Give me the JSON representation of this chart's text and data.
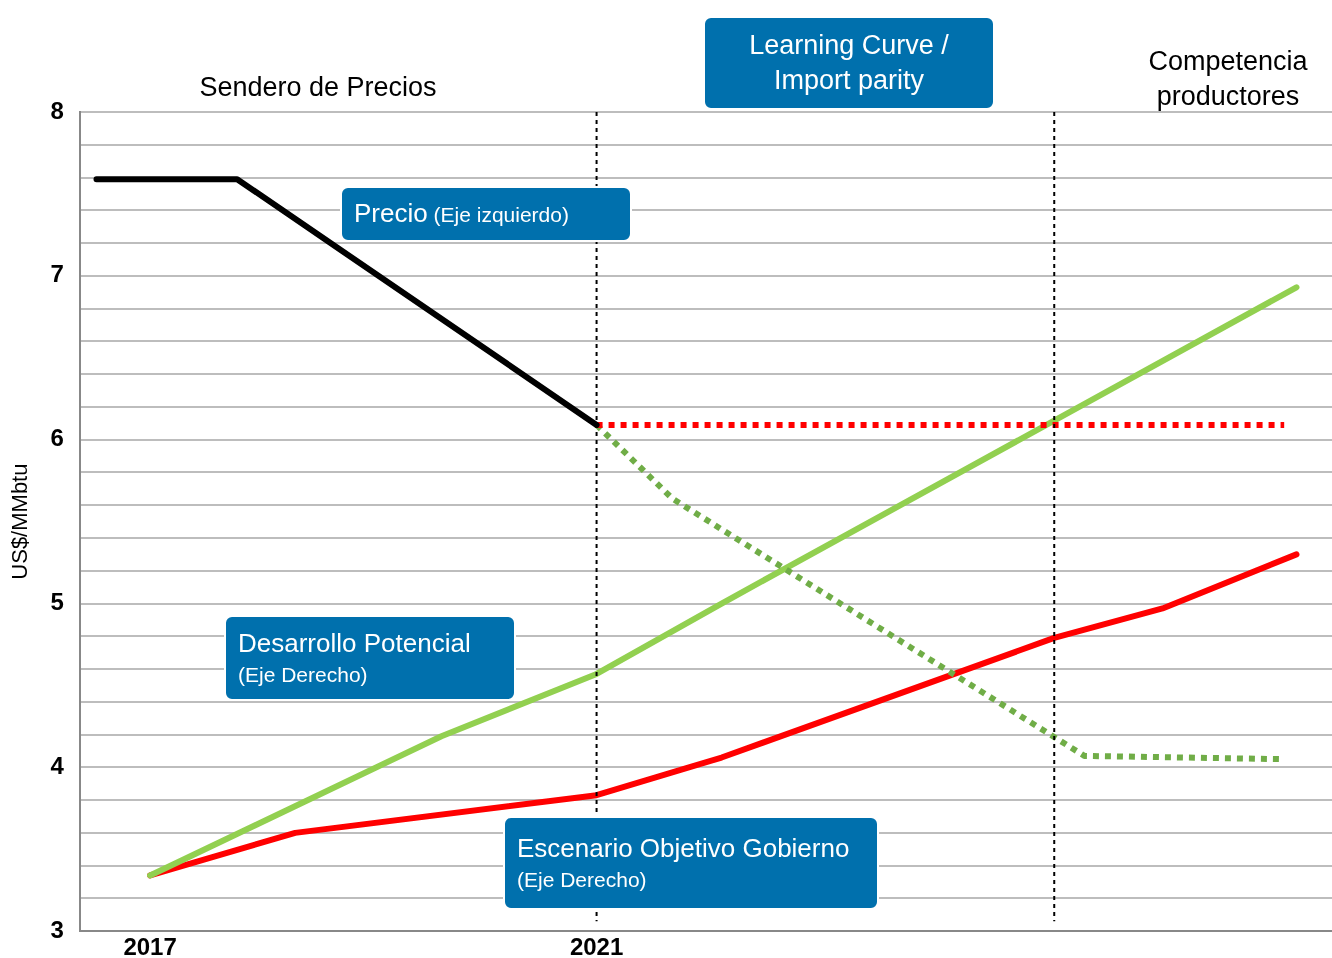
{
  "chart_data": {
    "type": "line",
    "ylabel": "US$/MMbtu",
    "annotations": [
      "Sendero de Precios",
      "Learning Curve / Import parity",
      "Competencia productores"
    ],
    "series": [
      {
        "name": "Precio (Eje izquierdo)",
        "color": "#000000",
        "x": [
          2016.52,
          2017.78,
          2021
        ],
        "values": [
          7.59,
          7.59,
          6.09
        ]
      },
      {
        "color": "#ff0000",
        "line_style": "dotted",
        "x": [
          2021,
          2027.16
        ],
        "values": [
          6.09,
          6.09
        ]
      },
      {
        "color": "#70ad47",
        "line_style": "dotted",
        "x": [
          2021,
          2021.68,
          2025.37,
          2027.16
        ],
        "values": [
          6.09,
          5.64,
          4.07,
          4.05
        ]
      },
      {
        "name": "Desarrollo Potencial (Eje Derecho)",
        "color": "#92d050",
        "x": [
          2017,
          2019.61,
          2021,
          2022.12,
          2027.27
        ],
        "values": [
          3.34,
          4.19,
          4.57,
          5.0,
          6.93
        ]
      },
      {
        "name": "Escenario Objetivo Gobierno (Eje Derecho)",
        "color": "#ff0000",
        "x": [
          2017,
          2018.3,
          2021,
          2022.12,
          2025.1,
          2026.07,
          2027.27
        ],
        "values": [
          3.34,
          3.6,
          3.83,
          4.06,
          4.79,
          4.97,
          5.3
        ]
      }
    ],
    "xlim": [
      2016.37,
      2027.66
    ],
    "xticks": [
      2017,
      2021
    ],
    "ylim": [
      3,
      8
    ],
    "yticks": [
      3,
      {
        "value": 3.2,
        "label": null
      },
      {
        "value": 3.4,
        "label": null
      },
      {
        "value": 3.6,
        "label": null
      },
      {
        "value": 3.8,
        "label": null
      },
      4,
      {
        "value": 4.2,
        "label": null
      },
      {
        "value": 4.4,
        "label": null
      },
      {
        "value": 4.6,
        "label": null
      },
      {
        "value": 4.8,
        "label": null
      },
      5,
      {
        "value": 5.2,
        "label": null
      },
      {
        "value": 5.4,
        "label": null
      },
      {
        "value": 5.6,
        "label": null
      },
      {
        "value": 5.8,
        "label": null
      },
      6,
      {
        "value": 6.2,
        "label": null
      },
      {
        "value": 6.4,
        "label": null
      },
      {
        "value": 6.6,
        "label": null
      },
      {
        "value": 6.8,
        "label": null
      },
      7,
      {
        "value": 7.2,
        "label": null
      },
      {
        "value": 7.4,
        "label": null
      },
      {
        "value": 7.6,
        "label": null
      },
      {
        "value": 7.8,
        "label": null
      },
      8
    ],
    "ref_lines": [
      {
        "axis": "x",
        "value": 2021,
        "color": "#000000",
        "line_style": "dashed"
      },
      {
        "axis": "x",
        "value": 2025.1,
        "color": "#000000",
        "line_style": "dashed"
      }
    ],
    "grid": "y",
    "legend": false,
    "marker": "none"
  }
}
